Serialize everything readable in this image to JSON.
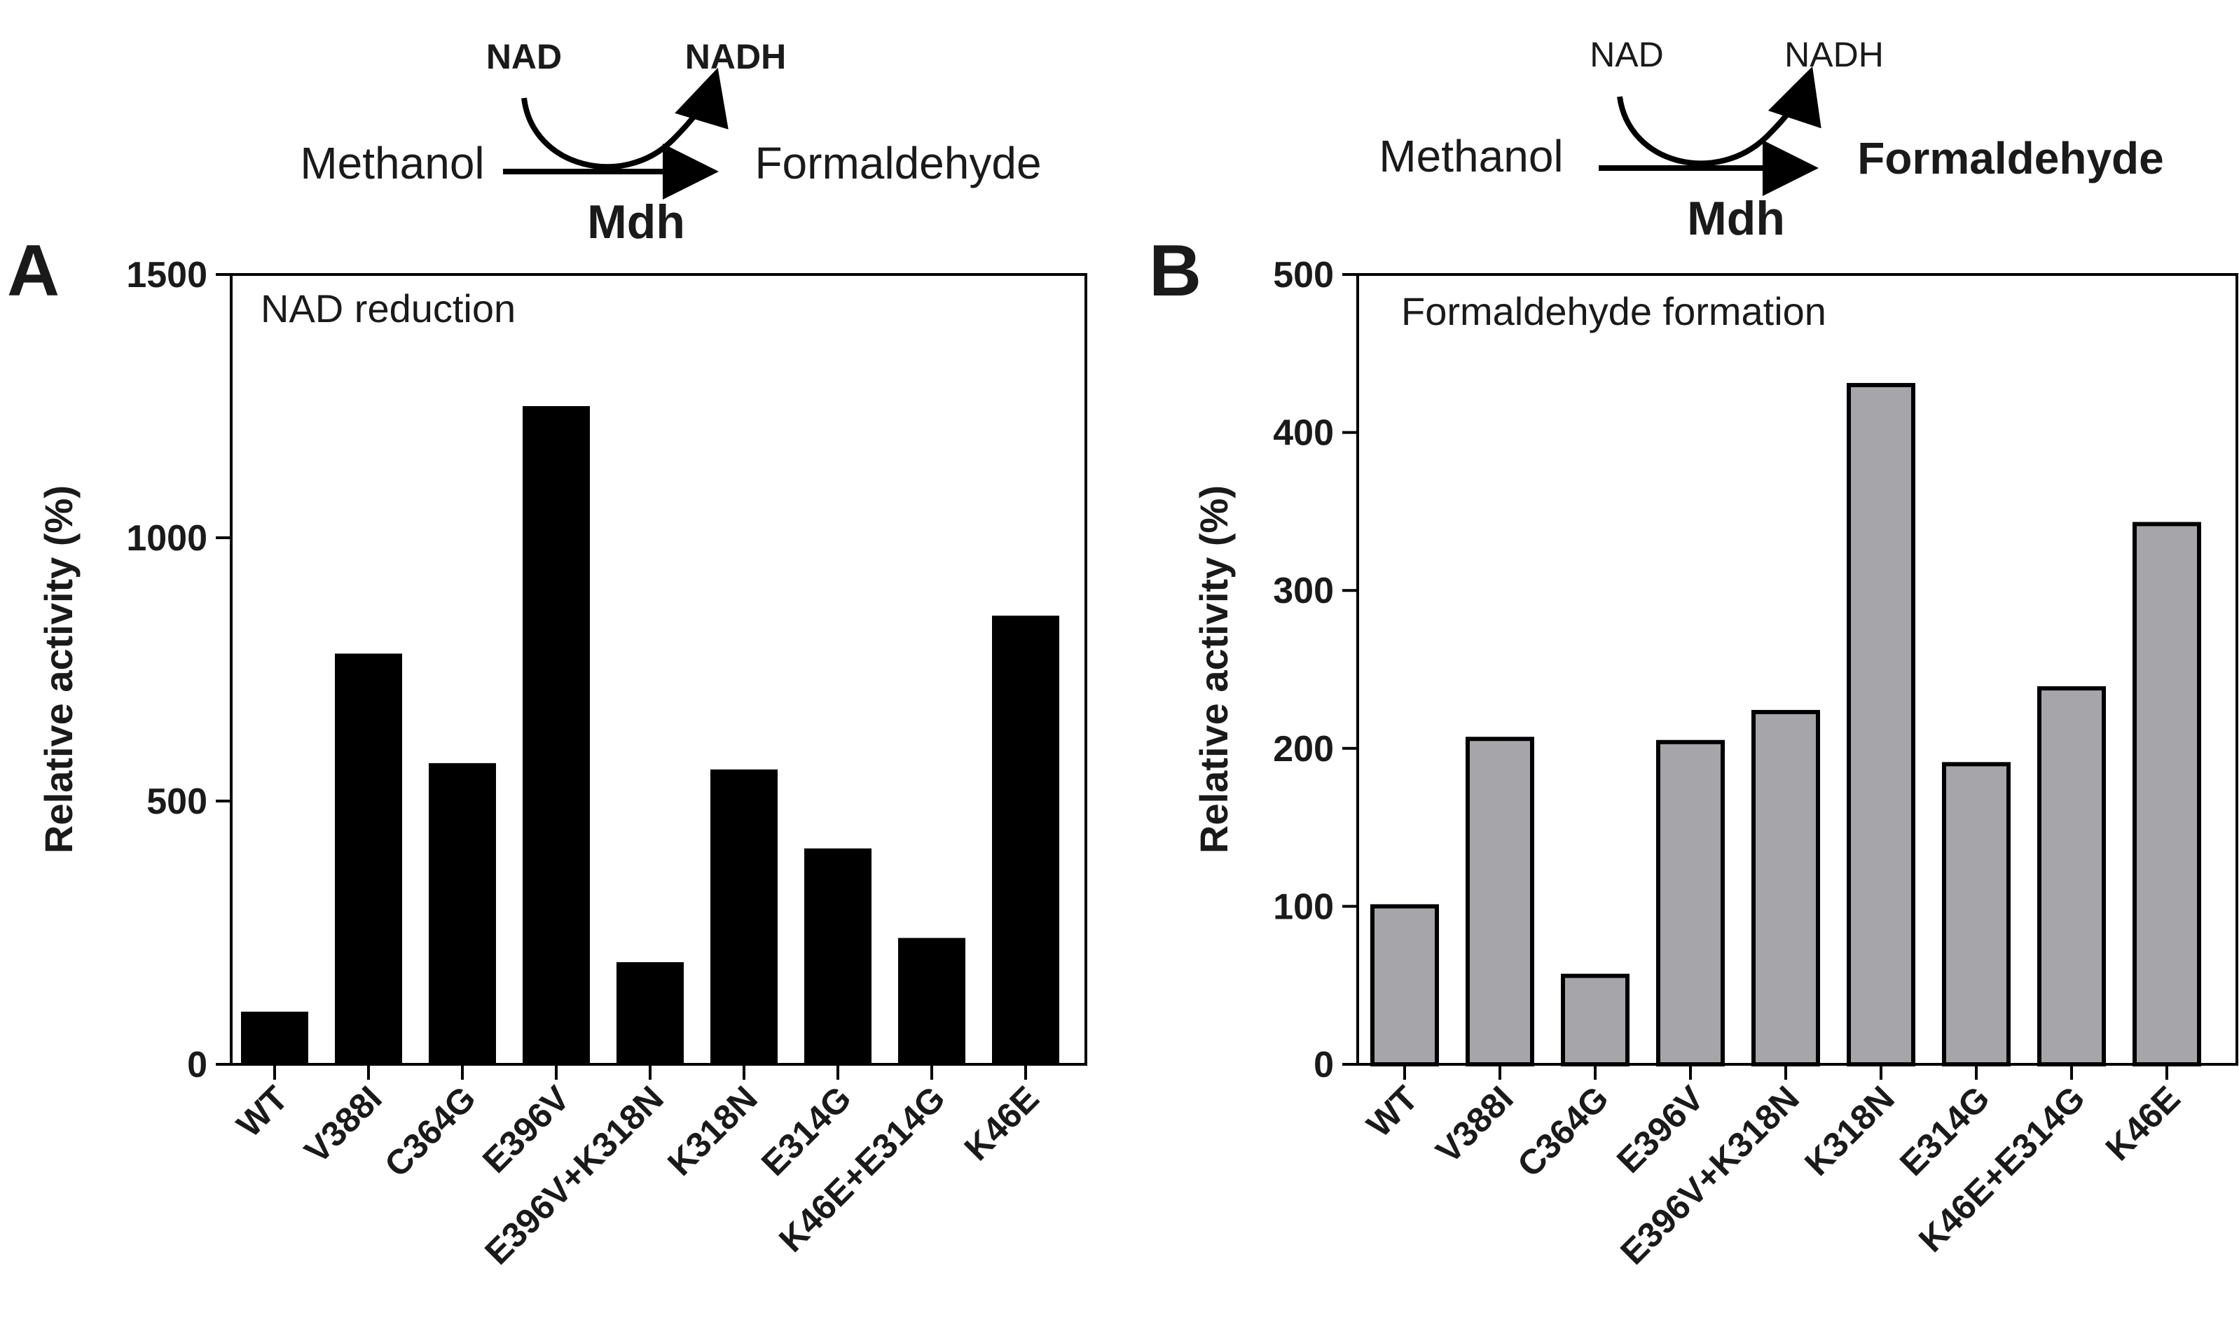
{
  "schemes": [
    {
      "cofactor_in": "NAD",
      "cofactor_out": "NADH",
      "substrate": "Methanol",
      "product": "Formaldehyde",
      "enzyme": "Mdh",
      "cofactor_color": "#1f7fd4",
      "product_color": "#1a1a1a",
      "enzyme_color": "#ee1c1c"
    },
    {
      "cofactor_in": "NAD",
      "cofactor_out": "NADH",
      "substrate": "Methanol",
      "product": "Formaldehyde",
      "enzyme": "Mdh",
      "cofactor_color": "#1a1a1a",
      "product_color": "#1f7fd4",
      "enzyme_color": "#ee1c1c"
    }
  ],
  "chart_data": [
    {
      "panel": "A",
      "type": "bar",
      "title": "NAD reduction",
      "xlabel": "",
      "ylabel": "Relative activity (%)",
      "ylim": [
        0,
        1500
      ],
      "yticks": [
        0,
        500,
        1000,
        1500
      ],
      "categories": [
        "WT",
        "V388I",
        "C364G",
        "E396V",
        "E396V+K318N",
        "K318N",
        "E314G",
        "K46E+E314G",
        "K46E"
      ],
      "values": [
        100,
        780,
        572,
        1250,
        194,
        560,
        410,
        240,
        852
      ],
      "bar_color": "#000000",
      "edge_color": "#000000",
      "grid": false
    },
    {
      "panel": "B",
      "type": "bar",
      "title": "Formaldehyde formation",
      "xlabel": "",
      "ylabel": "Relative activity (%)",
      "ylim": [
        0,
        500
      ],
      "yticks": [
        0,
        100,
        200,
        300,
        400,
        500
      ],
      "categories": [
        "WT",
        "V388I",
        "C364G",
        "E396V",
        "E396V+K318N",
        "K318N",
        "E314G",
        "K46E+E314G",
        "K46E"
      ],
      "values": [
        100,
        206,
        56,
        204,
        223,
        430,
        190,
        238,
        342
      ],
      "bar_color": "#a6a5aa",
      "edge_color": "#000000",
      "grid": false
    }
  ]
}
